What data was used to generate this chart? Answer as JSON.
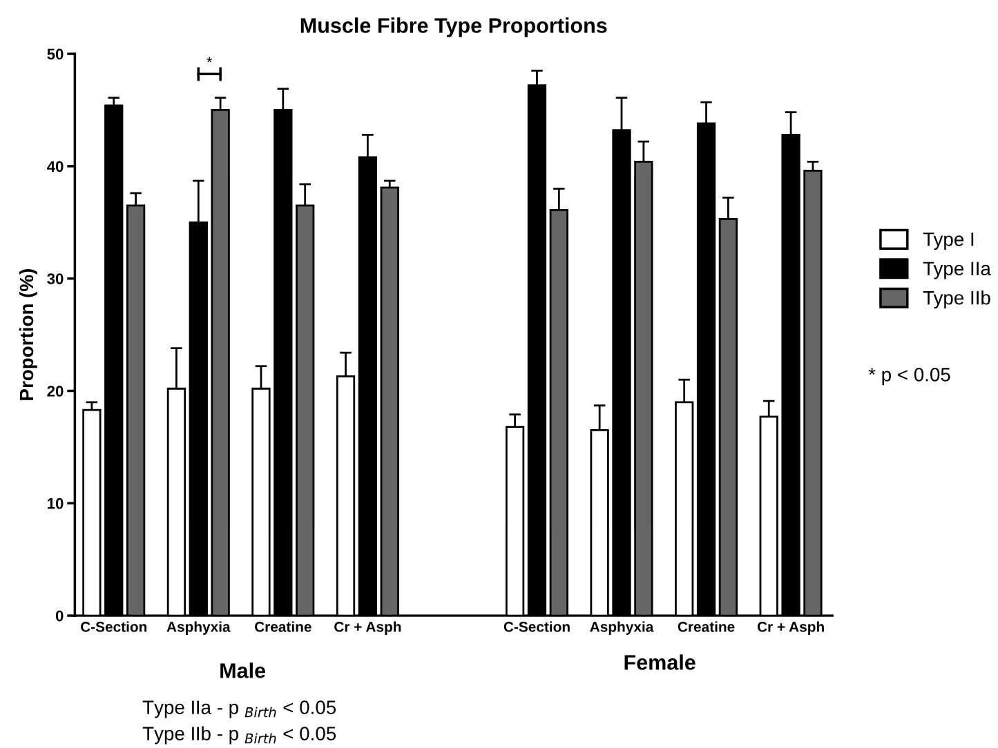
{
  "chart_data": {
    "type": "bar",
    "title": "Muscle Fibre Type Proportions",
    "ylabel": "Proportion (%)",
    "categories": [
      "C-Section",
      "Asphyxia",
      "Creatine",
      "Cr + Asph",
      null,
      "C-Section",
      "Asphyxia",
      "Creatine",
      "Cr + Asph"
    ],
    "series": [
      {
        "name": "Type I",
        "color": "#ffffff",
        "values": [
          18.3,
          20.2,
          20.2,
          21.3,
          null,
          16.8,
          16.5,
          19.0,
          17.7
        ],
        "errors": [
          [
            18.3,
            19.0
          ],
          [
            20.2,
            23.8
          ],
          [
            20.2,
            22.2
          ],
          [
            21.3,
            23.4
          ],
          null,
          [
            16.8,
            17.9
          ],
          [
            16.5,
            18.7
          ],
          [
            19.0,
            21.0
          ],
          [
            17.7,
            19.1
          ]
        ]
      },
      {
        "name": "Type IIa",
        "color": "#000000",
        "values": [
          45.4,
          35.0,
          45.0,
          40.8,
          null,
          47.2,
          43.2,
          43.8,
          42.8
        ],
        "errors": [
          [
            45.4,
            46.1
          ],
          [
            35.0,
            38.7
          ],
          [
            45.0,
            46.9
          ],
          [
            40.8,
            42.8
          ],
          null,
          [
            47.2,
            48.5
          ],
          [
            43.2,
            46.1
          ],
          [
            43.8,
            45.7
          ],
          [
            42.8,
            44.8
          ]
        ]
      },
      {
        "name": "Type IIb",
        "color": "#666666",
        "values": [
          36.5,
          45.0,
          36.5,
          38.1,
          null,
          36.1,
          40.4,
          35.3,
          39.6
        ],
        "errors": [
          [
            36.5,
            37.6
          ],
          [
            45.0,
            46.1
          ],
          [
            36.5,
            38.4
          ],
          [
            38.1,
            38.7
          ],
          null,
          [
            36.1,
            38.0
          ],
          [
            40.4,
            42.2
          ],
          [
            35.3,
            37.2
          ],
          [
            39.6,
            40.4
          ]
        ]
      }
    ],
    "ylim": [
      0,
      50
    ],
    "yticks": [
      0,
      10,
      20,
      30,
      40,
      50
    ],
    "grid": false,
    "legend": "right",
    "annotations": [
      "*",
      "* p < 0.05",
      "Male",
      "Female",
      "Type IIa - p $_{Birth}$ < 0.05",
      "Type IIb - p $_{Birth}$ < 0.05"
    ]
  }
}
